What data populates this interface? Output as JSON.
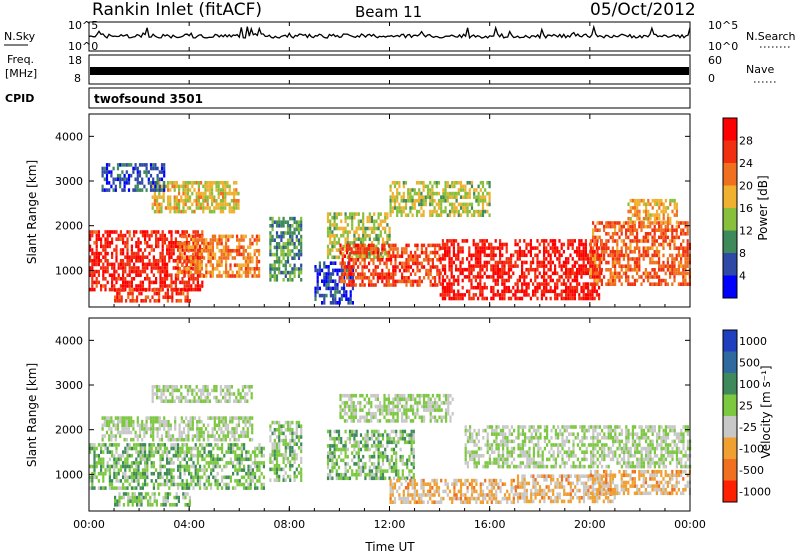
{
  "header": {
    "title": "Rankin Inlet (fitACF)",
    "beam": "Beam 11",
    "date": "05/Oct/2012"
  },
  "noise_panel": {
    "left_label": "N.Sky",
    "right_label": "N.Search",
    "tick_top": "10^5",
    "tick_bottom": "10^0"
  },
  "freq_panel": {
    "left_label_1": "Freq.",
    "left_label_2": "[MHz]",
    "right_label": "Nave",
    "left_tick_top": "18",
    "left_tick_bottom": "8",
    "right_tick_top": "60",
    "right_tick_bottom": "0"
  },
  "cpid": {
    "label": "CPID",
    "value": "twofsound 3501"
  },
  "axes": {
    "ylabel": "Slant Range [km]",
    "xlabel": "Time UT",
    "y_ticks": [
      "1000",
      "2000",
      "3000",
      "4000"
    ],
    "x_ticks": [
      "00:00",
      "04:00",
      "08:00",
      "12:00",
      "16:00",
      "20:00",
      "00:00"
    ]
  },
  "power_colorbar": {
    "label": "Power [dB]",
    "ticks": [
      "4",
      "8",
      "12",
      "16",
      "20",
      "24",
      "28"
    ],
    "colors": [
      "#0000ff",
      "#2e4aa6",
      "#3f8a5a",
      "#88c03b",
      "#f0b030",
      "#f07020",
      "#f03010",
      "#ff0000"
    ]
  },
  "velocity_colorbar": {
    "label": "Velocity [m s⁻¹]",
    "ticks": [
      "1000",
      "500",
      "100",
      "25",
      "-25",
      "-100",
      "-500",
      "-1000"
    ],
    "colors": [
      "#1f3fbf",
      "#2e6aa0",
      "#3f8a5a",
      "#7cc840",
      "#c8c8c8",
      "#f0a030",
      "#f07020",
      "#ff2000"
    ]
  },
  "chart_data": [
    {
      "type": "heatmap",
      "title": "",
      "xlabel": "",
      "ylabel": "Slant Range [km]",
      "quantity": "Power [dB]",
      "xlim": [
        0,
        24
      ],
      "ylim": [
        180,
        4500
      ],
      "clim": [
        0,
        30
      ],
      "regions": [
        {
          "t": [
            0.0,
            4.5
          ],
          "r": [
            600,
            1900
          ],
          "level": 26
        },
        {
          "t": [
            1.0,
            4.0
          ],
          "r": [
            300,
            600
          ],
          "level": 24
        },
        {
          "t": [
            3.5,
            6.8
          ],
          "r": [
            900,
            1800
          ],
          "level": 20
        },
        {
          "t": [
            2.5,
            6.0
          ],
          "r": [
            2300,
            3000
          ],
          "level": 16
        },
        {
          "t": [
            0.5,
            3.0
          ],
          "r": [
            2800,
            3400
          ],
          "level": 6
        },
        {
          "t": [
            7.2,
            8.5
          ],
          "r": [
            800,
            2200
          ],
          "level": 10
        },
        {
          "t": [
            9.0,
            10.5
          ],
          "r": [
            250,
            1200
          ],
          "level": 5
        },
        {
          "t": [
            9.5,
            12.0
          ],
          "r": [
            1300,
            2300
          ],
          "level": 14
        },
        {
          "t": [
            10.0,
            14.0
          ],
          "r": [
            700,
            1600
          ],
          "level": 24
        },
        {
          "t": [
            14.0,
            20.5
          ],
          "r": [
            400,
            1700
          ],
          "level": 27
        },
        {
          "t": [
            12.0,
            16.0
          ],
          "r": [
            2200,
            3000
          ],
          "level": 14
        },
        {
          "t": [
            20.0,
            24.0
          ],
          "r": [
            700,
            2100
          ],
          "level": 22
        },
        {
          "t": [
            21.5,
            23.5
          ],
          "r": [
            2100,
            2600
          ],
          "level": 18
        }
      ]
    },
    {
      "type": "heatmap",
      "title": "",
      "xlabel": "Time UT",
      "ylabel": "Slant Range [km]",
      "quantity": "Velocity [m s⁻¹]",
      "xlim": [
        0,
        24
      ],
      "ylim": [
        180,
        4500
      ],
      "clim": [
        -1000,
        1000
      ],
      "regions": [
        {
          "t": [
            0.0,
            7.0
          ],
          "r": [
            700,
            1700
          ],
          "level": 150
        },
        {
          "t": [
            1.0,
            4.0
          ],
          "r": [
            300,
            600
          ],
          "level": 150
        },
        {
          "t": [
            0.5,
            6.5
          ],
          "r": [
            1800,
            2300
          ],
          "level": 0
        },
        {
          "t": [
            2.5,
            6.5
          ],
          "r": [
            2600,
            3000
          ],
          "level": 0
        },
        {
          "t": [
            7.2,
            8.5
          ],
          "r": [
            900,
            2200
          ],
          "level": 80
        },
        {
          "t": [
            9.5,
            13.0
          ],
          "r": [
            900,
            2000
          ],
          "level": 150
        },
        {
          "t": [
            10.0,
            14.5
          ],
          "r": [
            2200,
            2800
          ],
          "level": 0
        },
        {
          "t": [
            12.0,
            17.0
          ],
          "r": [
            400,
            900
          ],
          "level": -300
        },
        {
          "t": [
            17.0,
            21.0
          ],
          "r": [
            400,
            1000
          ],
          "level": -300
        },
        {
          "t": [
            15.0,
            24.0
          ],
          "r": [
            1200,
            2100
          ],
          "level": 0
        },
        {
          "t": [
            20.0,
            24.0
          ],
          "r": [
            600,
            1100
          ],
          "level": -300
        }
      ]
    }
  ]
}
